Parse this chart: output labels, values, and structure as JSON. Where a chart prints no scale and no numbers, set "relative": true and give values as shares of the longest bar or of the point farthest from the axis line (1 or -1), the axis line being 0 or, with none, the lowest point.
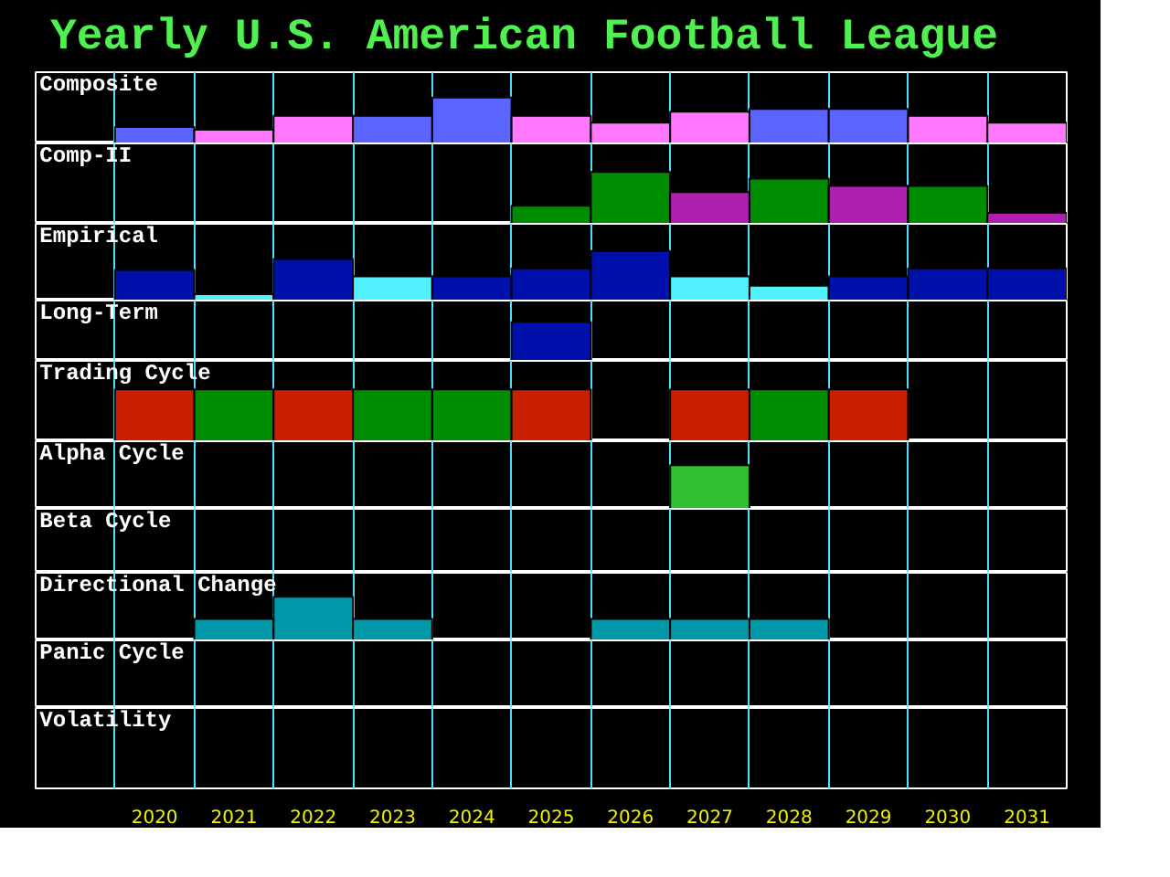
{
  "chart_data": [
    {
      "type": "bar",
      "title": "Yearly U.S. American Football League",
      "ylabel": "Composite",
      "relative": true,
      "tick_labels": false,
      "grid": "x",
      "categories": [
        "2020",
        "2021",
        "2022",
        "2023",
        "2024",
        "2025",
        "2026",
        "2027",
        "2028",
        "2029",
        "2030",
        "2031"
      ],
      "values": [
        0.36,
        0.3,
        0.6,
        0.6,
        1,
        0.6,
        0.45,
        0.69,
        0.75,
        0.75,
        0.6,
        0.45
      ],
      "colors": [
        "#5a64ff",
        "#ff78ff",
        "#ff78ff",
        "#5a64ff",
        "#5a64ff",
        "#ff78ff",
        "#ff78ff",
        "#ff78ff",
        "#5a64ff",
        "#5a64ff",
        "#ff78ff",
        "#ff78ff"
      ]
    },
    {
      "type": "bar",
      "ylabel": "Comp-II",
      "relative": true,
      "tick_labels": false,
      "grid": "x",
      "categories": [
        "2020",
        "2021",
        "2022",
        "2023",
        "2024",
        "2025",
        "2026",
        "2027",
        "2028",
        "2029",
        "2030",
        "2031"
      ],
      "values": [
        null,
        null,
        null,
        null,
        null,
        0.35,
        1,
        0.61,
        0.87,
        0.73,
        0.73,
        0.21
      ],
      "colors": [
        null,
        null,
        null,
        null,
        null,
        "#008c00",
        "#008c00",
        "#b020b0",
        "#008c00",
        "#b020b0",
        "#008c00",
        "#b020b0"
      ]
    },
    {
      "type": "bar",
      "ylabel": "Empirical",
      "relative": true,
      "tick_labels": false,
      "grid": "x",
      "categories": [
        "2020",
        "2021",
        "2022",
        "2023",
        "2024",
        "2025",
        "2026",
        "2027",
        "2028",
        "2029",
        "2030",
        "2031"
      ],
      "values": [
        0.62,
        0.13,
        0.84,
        0.49,
        0.49,
        0.65,
        1,
        0.49,
        0.3,
        0.49,
        0.65,
        0.65
      ],
      "colors": [
        "#0010aa",
        "#50f0ff",
        "#0010aa",
        "#50f0ff",
        "#0010aa",
        "#0010aa",
        "#0010aa",
        "#50f0ff",
        "#50f0ff",
        "#0010aa",
        "#0010aa",
        "#0010aa"
      ]
    },
    {
      "type": "bar",
      "ylabel": "Long-Term",
      "relative": true,
      "tick_labels": false,
      "grid": "x",
      "categories": [
        "2020",
        "2021",
        "2022",
        "2023",
        "2024",
        "2025",
        "2026",
        "2027",
        "2028",
        "2029",
        "2030",
        "2031"
      ],
      "values": [
        null,
        null,
        null,
        null,
        null,
        1,
        null,
        null,
        null,
        null,
        null,
        null
      ],
      "colors": [
        null,
        null,
        null,
        null,
        null,
        "#0010aa",
        null,
        null,
        null,
        null,
        null,
        null
      ]
    },
    {
      "type": "bar",
      "ylabel": "Trading Cycle",
      "relative": true,
      "tick_labels": false,
      "grid": "x",
      "categories": [
        "2020",
        "2021",
        "2022",
        "2023",
        "2024",
        "2025",
        "2026",
        "2027",
        "2028",
        "2029",
        "2030",
        "2031"
      ],
      "values": [
        1,
        1,
        1,
        1,
        1,
        1,
        null,
        1,
        1,
        1,
        null,
        null
      ],
      "colors": [
        "#c82000",
        "#008c00",
        "#c82000",
        "#008c00",
        "#008c00",
        "#c82000",
        null,
        "#c82000",
        "#008c00",
        "#c82000",
        null,
        null
      ]
    },
    {
      "type": "bar",
      "ylabel": "Alpha Cycle",
      "relative": true,
      "tick_labels": false,
      "grid": "x",
      "categories": [
        "2020",
        "2021",
        "2022",
        "2023",
        "2024",
        "2025",
        "2026",
        "2027",
        "2028",
        "2029",
        "2030",
        "2031"
      ],
      "values": [
        null,
        null,
        null,
        null,
        null,
        null,
        null,
        1,
        null,
        null,
        null,
        null
      ],
      "colors": [
        null,
        null,
        null,
        null,
        null,
        null,
        null,
        "#30c030",
        null,
        null,
        null,
        null
      ]
    },
    {
      "type": "other",
      "ylabel": "Beta Cycle"
    },
    {
      "type": "bar",
      "ylabel": "Directional Change",
      "relative": true,
      "tick_labels": "x",
      "grid": "x",
      "categories": [
        "2020",
        "2021",
        "2022",
        "2023",
        "2024",
        "2025",
        "2026",
        "2027",
        "2028",
        "2029",
        "2030",
        "2031"
      ],
      "values": [
        null,
        0.49,
        1,
        0.49,
        null,
        null,
        0.49,
        0.49,
        0.49,
        null,
        null,
        null
      ],
      "colors": [
        null,
        "#0098a8",
        "#0098a8",
        "#0098a8",
        null,
        null,
        "#0098a8",
        "#0098a8",
        "#0098a8",
        null,
        null,
        null
      ]
    },
    {
      "type": "other",
      "ylabel": "Panic Cycle"
    },
    {
      "type": "other",
      "ylabel": "Volatility"
    }
  ]
}
